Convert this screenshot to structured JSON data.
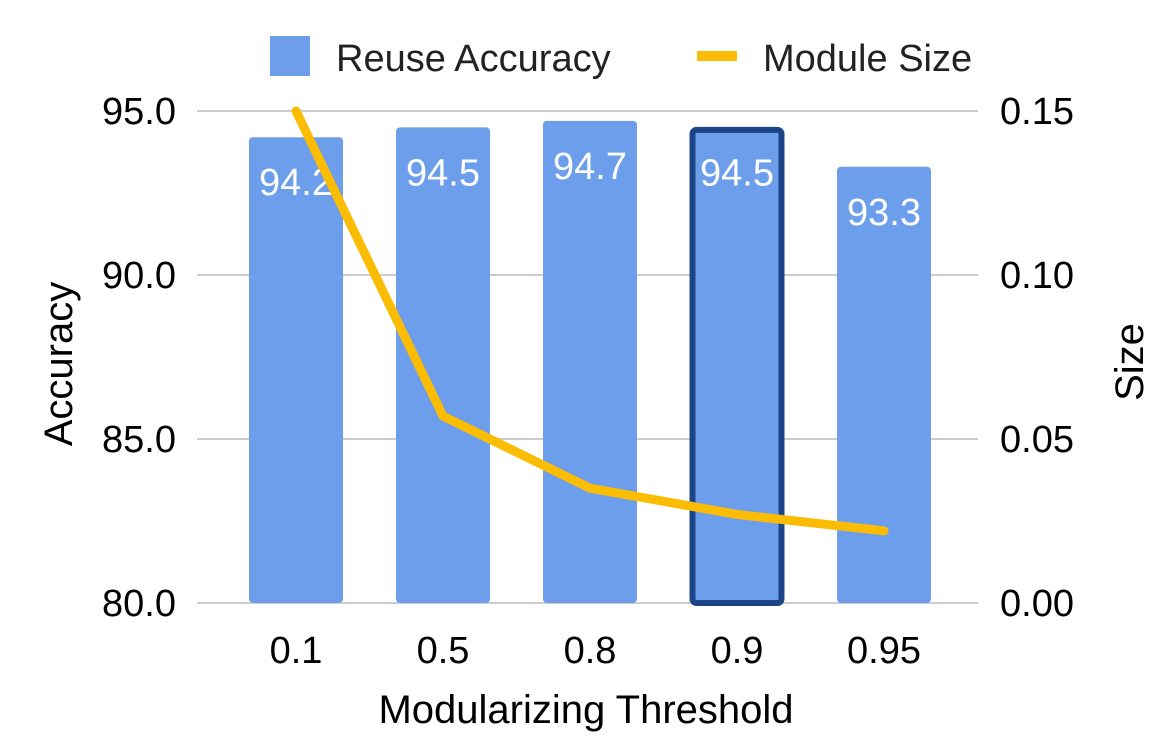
{
  "chart_data": {
    "type": "bar",
    "title": "",
    "xlabel": "Modularizing Threshold",
    "ylabel": "Accuracy",
    "y2label": "Size",
    "categories": [
      "0.1",
      "0.5",
      "0.8",
      "0.9",
      "0.95"
    ],
    "ylim": [
      80.0,
      95.0
    ],
    "yticks": [
      "80.0",
      "85.0",
      "90.0",
      "95.0"
    ],
    "y2lim": [
      0.0,
      0.15
    ],
    "y2ticks": [
      "0.00",
      "0.05",
      "0.10",
      "0.15"
    ],
    "grid": true,
    "legend_position": "top",
    "highlighted_category": "0.9",
    "series": [
      {
        "name": "Reuse Accuracy",
        "type": "bar",
        "axis": "left",
        "color": "#6d9eeb",
        "highlight_border_color": "#1c4587",
        "values": [
          94.2,
          94.5,
          94.7,
          94.5,
          93.3
        ],
        "labels": [
          "94.2",
          "94.5",
          "94.7",
          "94.5",
          "93.3"
        ]
      },
      {
        "name": "Module Size",
        "type": "line",
        "axis": "right",
        "color": "#fbbc04",
        "values": [
          0.15,
          0.057,
          0.035,
          0.027,
          0.022
        ]
      }
    ]
  }
}
